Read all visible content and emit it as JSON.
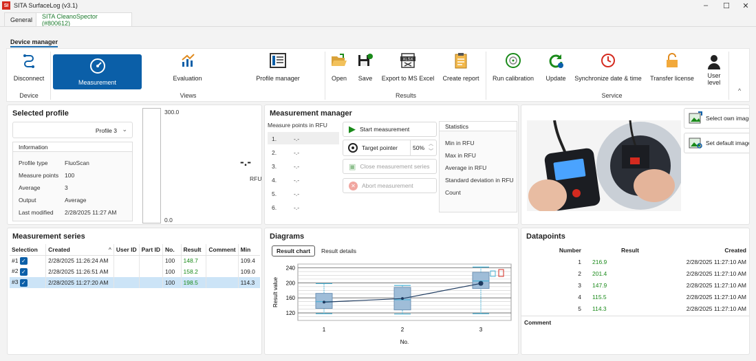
{
  "window": {
    "logo": "SI",
    "title": "SITA SurfaceLog (v3.1)",
    "minimize": "–",
    "maximize": "☐",
    "close": "✕"
  },
  "tabs": [
    {
      "label": "General"
    },
    {
      "label": "SITA CleanoSpector (#800612)"
    }
  ],
  "subtab": "Device manager",
  "ribbon": {
    "device": {
      "disconnect": "Disconnect",
      "group": "Device"
    },
    "views": {
      "measurement": "Measurement",
      "evaluation": "Evaluation",
      "profile_manager": "Profile manager",
      "group": "Views"
    },
    "results": {
      "open": "Open",
      "save": "Save",
      "export": "Export to MS Excel",
      "create_report": "Create report",
      "group": "Results"
    },
    "service": {
      "run_calibration": "Run calibration",
      "update": "Update",
      "sync": "Synchronize date & time",
      "transfer": "Transfer license",
      "user_level": "User level",
      "group": "Service"
    },
    "collapse": "^"
  },
  "selected_profile": {
    "title": "Selected profile",
    "profile": "Profile 3",
    "info_title": "Information",
    "rows": [
      {
        "k": "Profile type",
        "v": "FluoScan"
      },
      {
        "k": "Measure points",
        "v": "100"
      },
      {
        "k": "Average",
        "v": "3"
      },
      {
        "k": "Output",
        "v": "Average"
      },
      {
        "k": "Last modified",
        "v": "2/28/2025 11:27 AM"
      }
    ],
    "gauge_max": "300.0",
    "gauge_min": "0.0",
    "reading": "-.-",
    "unit": "RFU"
  },
  "measurement_manager": {
    "title": "Measurement manager",
    "points_title": "Measure points in RFU",
    "points": [
      {
        "n": "1.",
        "v": "-.-"
      },
      {
        "n": "2.",
        "v": "-.-"
      },
      {
        "n": "3.",
        "v": "-.-"
      },
      {
        "n": "4.",
        "v": "-.-"
      },
      {
        "n": "5.",
        "v": "-.-"
      },
      {
        "n": "6.",
        "v": "-.-"
      }
    ],
    "start": "Start measurement",
    "target": "Target pointer",
    "target_pct": "50%",
    "close_series": "Close measurement series",
    "abort": "Abort measurement",
    "stats_title": "Statistics",
    "stats": [
      "Min in RFU",
      "Max in RFU",
      "Average in RFU",
      "Standard deviation in RFU",
      "Count"
    ]
  },
  "image_panel": {
    "select_own": "Select own image",
    "set_default": "Set default image"
  },
  "series": {
    "title": "Measurement series",
    "columns": [
      "Selection",
      "Created",
      "User ID",
      "Part ID",
      "No.",
      "Result",
      "Comment",
      "Min"
    ],
    "rows": [
      {
        "sel": "#1",
        "created": "2/28/2025 11:26:24 AM",
        "no": "100",
        "result": "148.7",
        "min": "109.4"
      },
      {
        "sel": "#2",
        "created": "2/28/2025 11:26:51 AM",
        "no": "100",
        "result": "158.2",
        "min": "109.0"
      },
      {
        "sel": "#3",
        "created": "2/28/2025 11:27:20 AM",
        "no": "100",
        "result": "198.5",
        "min": "114.3"
      }
    ]
  },
  "diagrams": {
    "title": "Diagrams",
    "tab_result_chart": "Result chart",
    "tab_result_details": "Result details"
  },
  "chart_data": {
    "type": "line",
    "x": [
      1,
      2,
      3
    ],
    "xlabel": "No.",
    "ylabel": "Result value",
    "ylim": [
      100,
      250
    ],
    "yticks": [
      120,
      160,
      200,
      240
    ],
    "series": [
      {
        "values": [
          148.7,
          158.2,
          198.5
        ]
      }
    ],
    "boxes": [
      {
        "x": 1,
        "min": 118,
        "q1": 132,
        "med": 150,
        "q3": 172,
        "max": 198
      },
      {
        "x": 2,
        "min": 117,
        "q1": 128,
        "med": 155,
        "q3": 188,
        "max": 193
      },
      {
        "x": 3,
        "min": 118,
        "q1": 185,
        "med": 205,
        "q3": 228,
        "max": 242
      }
    ],
    "colors": {
      "box": "#9fbdd8",
      "whisker": "#4ab3d6",
      "line": "#1d3a5f"
    }
  },
  "datapoints": {
    "title": "Datapoints",
    "columns": [
      "Number",
      "Result",
      "Created"
    ],
    "rows": [
      {
        "n": "1",
        "r": "216.9",
        "c": "2/28/2025 11:27:10 AM"
      },
      {
        "n": "2",
        "r": "201.4",
        "c": "2/28/2025 11:27:10 AM"
      },
      {
        "n": "3",
        "r": "147.9",
        "c": "2/28/2025 11:27:10 AM"
      },
      {
        "n": "4",
        "r": "115.5",
        "c": "2/28/2025 11:27:10 AM"
      },
      {
        "n": "5",
        "r": "114.3",
        "c": "2/28/2025 11:27:10 AM"
      }
    ],
    "comment": "Comment"
  }
}
